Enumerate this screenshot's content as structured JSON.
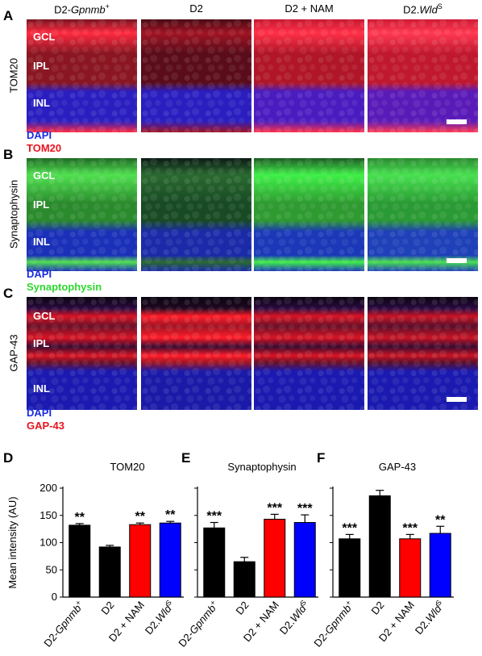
{
  "columns": [
    {
      "main": "D2-",
      "italic": "Gpnmb",
      "sup": "+"
    },
    {
      "main": "D2",
      "italic": "",
      "sup": ""
    },
    {
      "main": "D2 + NAM",
      "italic": "",
      "sup": ""
    },
    {
      "main": "D2.",
      "italic": "Wld",
      "sup": "S"
    }
  ],
  "rows": [
    {
      "letter": "A",
      "side_label": "TOM20",
      "stain1": "DAPI",
      "stain2": "TOM20",
      "stain1_color": "#1a2be0",
      "stain2_color": "#e8141e",
      "layers": {
        "gcl": "GCL",
        "ipl": "IPL",
        "inl": "INL"
      },
      "tiles": [
        {
          "top": "#7a1420",
          "mid": "#8a1622",
          "bot": "#2a1ec0",
          "bright": "#ff2a40"
        },
        {
          "top": "#4a0a14",
          "mid": "#5a0c1a",
          "bot": "#2a1ec0",
          "bright": "#a01424"
        },
        {
          "top": "#c81830",
          "mid": "#b01628",
          "bot": "#4a1cc0",
          "bright": "#ff3048"
        },
        {
          "top": "#d01a34",
          "mid": "#c0182e",
          "bot": "#5a1ab8",
          "bright": "#ff3a52"
        }
      ]
    },
    {
      "letter": "B",
      "side_label": "Synaptophysin",
      "stain1": "DAPI",
      "stain2": "Synaptophysin",
      "stain1_color": "#1a2be0",
      "stain2_color": "#2ed82e",
      "layers": {
        "gcl": "GCL",
        "ipl": "IPL",
        "inl": "INL"
      },
      "tiles": [
        {
          "top": "#1e6a22",
          "mid": "#2a8a2c",
          "bot": "#1a30b8",
          "bright": "#50e050"
        },
        {
          "top": "#0a1a14",
          "mid": "#184a24",
          "bot": "#1a2aa8",
          "bright": "#2a6a30"
        },
        {
          "top": "#1c5a24",
          "mid": "#2e9a30",
          "bot": "#1a38b8",
          "bright": "#40f048"
        },
        {
          "top": "#2a8a30",
          "mid": "#2a9a34",
          "bot": "#1e40b8",
          "bright": "#48e050"
        }
      ]
    },
    {
      "letter": "C",
      "side_label": "GAP-43",
      "stain1": "DAPI",
      "stain2": "GAP-43",
      "stain1_color": "#1a2be0",
      "stain2_color": "#e8141e",
      "layers": {
        "gcl": "GCL",
        "ipl": "IPL",
        "inl": "INL"
      },
      "tiles": [
        {
          "top": "#2a0a40",
          "mid": "#6a1028",
          "bot": "#1a1ab0",
          "bright": "#d81424"
        },
        {
          "top": "#200820",
          "mid": "#a01424",
          "bot": "#1a1aa8",
          "bright": "#ff1c28"
        },
        {
          "top": "#2a0a40",
          "mid": "#6a1028",
          "bot": "#1a1ab0",
          "bright": "#d81424"
        },
        {
          "top": "#2a0a40",
          "mid": "#5a0e2a",
          "bot": "#1a1ab0",
          "bright": "#c81424"
        }
      ]
    }
  ],
  "charts": {
    "ylabel": "Mean intensity (AU)",
    "yticks": [
      0,
      50,
      100,
      150,
      200
    ],
    "xlabels": [
      {
        "main": "D2-",
        "italic": "Gpnmb",
        "sup": "+"
      },
      {
        "main": "D2",
        "italic": "",
        "sup": ""
      },
      {
        "main": "D2 + NAM",
        "italic": "",
        "sup": ""
      },
      {
        "main": "D2.",
        "italic": "Wld",
        "sup": "S"
      }
    ]
  },
  "chart_data": [
    {
      "type": "bar",
      "letter": "D",
      "title": "TOM20",
      "categories": [
        "D2-Gpnmb+",
        "D2",
        "D2 + NAM",
        "D2.WldS"
      ],
      "values": [
        132,
        92,
        133,
        136
      ],
      "errors": [
        3,
        3,
        3,
        3
      ],
      "significance": [
        "**",
        "",
        "**",
        "**"
      ],
      "colors": [
        "#000000",
        "#000000",
        "#ff0000",
        "#0000ff"
      ],
      "ylim": [
        0,
        200
      ]
    },
    {
      "type": "bar",
      "letter": "E",
      "title": "Synaptophysin",
      "categories": [
        "D2-Gpnmb+",
        "D2",
        "D2 + NAM",
        "D2.WldS"
      ],
      "values": [
        127,
        65,
        143,
        137
      ],
      "errors": [
        10,
        8,
        9,
        14
      ],
      "significance": [
        "***",
        "",
        "***",
        "***"
      ],
      "colors": [
        "#000000",
        "#000000",
        "#ff0000",
        "#0000ff"
      ],
      "ylim": [
        0,
        200
      ]
    },
    {
      "type": "bar",
      "letter": "F",
      "title": "GAP-43",
      "categories": [
        "D2-Gpnmb+",
        "D2",
        "D2 + NAM",
        "D2.WldS"
      ],
      "values": [
        107,
        186,
        107,
        117
      ],
      "errors": [
        8,
        10,
        8,
        13
      ],
      "significance": [
        "***",
        "",
        "***",
        "**"
      ],
      "colors": [
        "#000000",
        "#000000",
        "#ff0000",
        "#0000ff"
      ],
      "ylim": [
        0,
        200
      ]
    }
  ]
}
